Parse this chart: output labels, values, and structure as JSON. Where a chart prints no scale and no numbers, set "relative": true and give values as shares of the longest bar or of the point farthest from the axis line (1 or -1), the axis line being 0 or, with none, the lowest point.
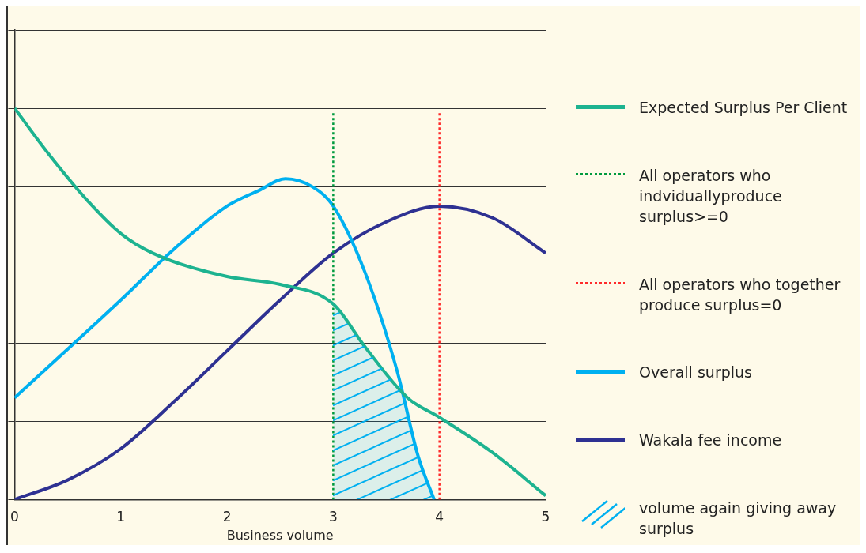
{
  "chart_data": {
    "type": "line",
    "xlabel": "Business volume",
    "relative": true,
    "xlim": [
      0,
      5
    ],
    "xticks": [
      0,
      1,
      2,
      3,
      4,
      5
    ],
    "tick_labels": "x",
    "grid": "y",
    "legend": "right",
    "marker": "none",
    "line_style": "solid",
    "series": [
      {
        "name": "Expected Surplus Per Client",
        "color": "#1db390",
        "x": [
          0,
          0.33,
          0.7,
          1,
          1.3,
          2,
          2.5,
          3,
          3.3,
          3.7,
          4,
          4.5,
          5
        ],
        "values": [
          1,
          0.88,
          0.76,
          0.68,
          0.63,
          0.57,
          0.55,
          0.5,
          0.39,
          0.26,
          0.21,
          0.12,
          0.01
        ]
      },
      {
        "name": "All operators who indviduallyproduce surplus>=0",
        "color": "#009a3e",
        "line_style": "dotted",
        "x": [
          3,
          3
        ],
        "values": [
          0,
          0.99
        ]
      },
      {
        "name": "All operators who together produce surplus=0",
        "color": "#ff2a2a",
        "line_style": "dotted",
        "x": [
          4,
          4
        ],
        "values": [
          0,
          0.99
        ]
      },
      {
        "name": "Overall surplus",
        "color": "#00b0f0",
        "x": [
          0,
          1,
          1.5,
          2,
          2.3,
          2.55,
          2.8,
          3,
          3.3,
          3.6,
          3.8,
          3.95
        ],
        "values": [
          0.26,
          0.51,
          0.64,
          0.75,
          0.79,
          0.82,
          0.8,
          0.75,
          0.58,
          0.33,
          0.11,
          0
        ]
      },
      {
        "name": "Wakala fee income",
        "color": "#2e3192",
        "x": [
          0,
          0.5,
          1,
          1.5,
          2,
          2.5,
          3,
          3.5,
          4,
          4.5,
          5
        ],
        "values": [
          0,
          0.05,
          0.13,
          0.25,
          0.38,
          0.51,
          0.63,
          0.71,
          0.75,
          0.72,
          0.63
        ]
      },
      {
        "name": "volume again giving away surplus",
        "type": "area",
        "color": "#00b0f0",
        "x": [
          3,
          3.3,
          3.6,
          3.68,
          3.8,
          3.95
        ],
        "values": [
          0.5,
          0.39,
          0.29,
          0.26,
          0.11,
          0
        ]
      }
    ]
  }
}
